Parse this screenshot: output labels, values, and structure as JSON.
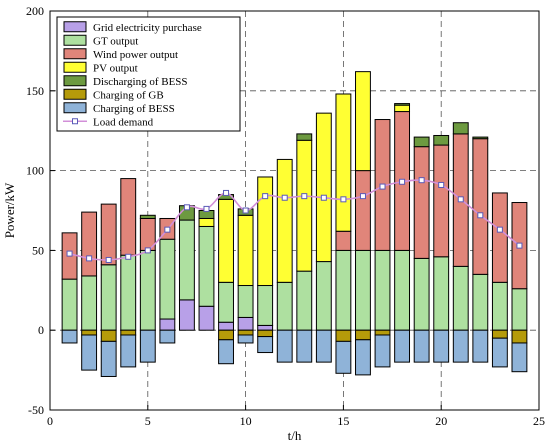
{
  "chart_data": {
    "type": "bar",
    "title": "",
    "xlabel": "t/h",
    "ylabel": "Power/kW",
    "xlim": [
      0,
      25
    ],
    "ylim": [
      -50,
      200
    ],
    "xticks": [
      0,
      5,
      10,
      15,
      20,
      25
    ],
    "yticks": [
      -50,
      0,
      50,
      100,
      150,
      200
    ],
    "grid": true,
    "legend_position": "top-left",
    "x": [
      1,
      2,
      3,
      4,
      5,
      6,
      7,
      8,
      9,
      10,
      11,
      12,
      13,
      14,
      15,
      16,
      17,
      18,
      19,
      20,
      21,
      22,
      23,
      24
    ],
    "stacked_positive_order": [
      "Grid electricity purchase",
      "GT output",
      "Wind power output",
      "PV output",
      "Discharging of BESS"
    ],
    "stacked_negative_order": [
      "Charging of GB",
      "Charging of BESS"
    ],
    "series": [
      {
        "name": "Grid electricity purchase",
        "color": "#b8a0e8",
        "values": [
          0,
          0,
          0,
          0,
          0,
          7,
          19,
          15,
          5,
          8,
          3,
          0,
          0,
          0,
          0,
          0,
          0,
          0,
          0,
          0,
          0,
          0,
          0,
          0
        ]
      },
      {
        "name": "GT output",
        "color": "#aee0a0",
        "values": [
          32,
          34,
          41,
          47,
          50,
          50,
          50,
          50,
          25,
          20,
          25,
          30,
          37,
          43,
          50,
          50,
          50,
          50,
          45,
          46,
          40,
          35,
          30,
          26
        ]
      },
      {
        "name": "Wind power output",
        "color": "#e0857a",
        "values": [
          29,
          40,
          38,
          48,
          20,
          13,
          0,
          0,
          0,
          0,
          0,
          0,
          0,
          0,
          12,
          50,
          82,
          87,
          70,
          70,
          83,
          85,
          56,
          54
        ]
      },
      {
        "name": "PV output",
        "color": "#ffff33",
        "values": [
          0,
          0,
          0,
          0,
          0,
          0,
          0,
          5,
          52,
          44,
          68,
          77,
          82,
          93,
          86,
          62,
          0,
          4,
          0,
          0,
          0,
          0,
          0,
          0
        ]
      },
      {
        "name": "Discharging of BESS",
        "color": "#6d9a40",
        "values": [
          0,
          0,
          0,
          0,
          2,
          0,
          9,
          5,
          3,
          4,
          0,
          0,
          4,
          0,
          0,
          0,
          0,
          1,
          6,
          6,
          7,
          1,
          0,
          0
        ]
      },
      {
        "name": "Charging of GB",
        "color": "#b59b0a",
        "values": [
          0,
          -3,
          -7,
          -3,
          0,
          0,
          0,
          0,
          -6,
          -3,
          -4,
          0,
          0,
          0,
          -7,
          -6,
          -3,
          0,
          0,
          0,
          0,
          0,
          -5,
          -8
        ]
      },
      {
        "name": "Charging of BESS",
        "color": "#8fb3d8",
        "values": [
          -8,
          -22,
          -22,
          -20,
          -20,
          -8,
          0,
          0,
          -15,
          -5,
          -10,
          -20,
          -20,
          -20,
          -20,
          -22,
          -20,
          -20,
          -20,
          -20,
          -20,
          -20,
          -18,
          -18
        ]
      },
      {
        "name": "Load demand",
        "type": "line",
        "color": "#d28fd8",
        "marker_color": "#5a5ab8",
        "values": [
          48,
          45,
          44,
          46,
          50,
          63,
          77,
          76,
          86,
          75,
          84,
          83,
          84,
          83,
          82,
          84,
          90,
          93,
          94,
          91,
          82,
          72,
          63,
          53
        ]
      }
    ]
  }
}
